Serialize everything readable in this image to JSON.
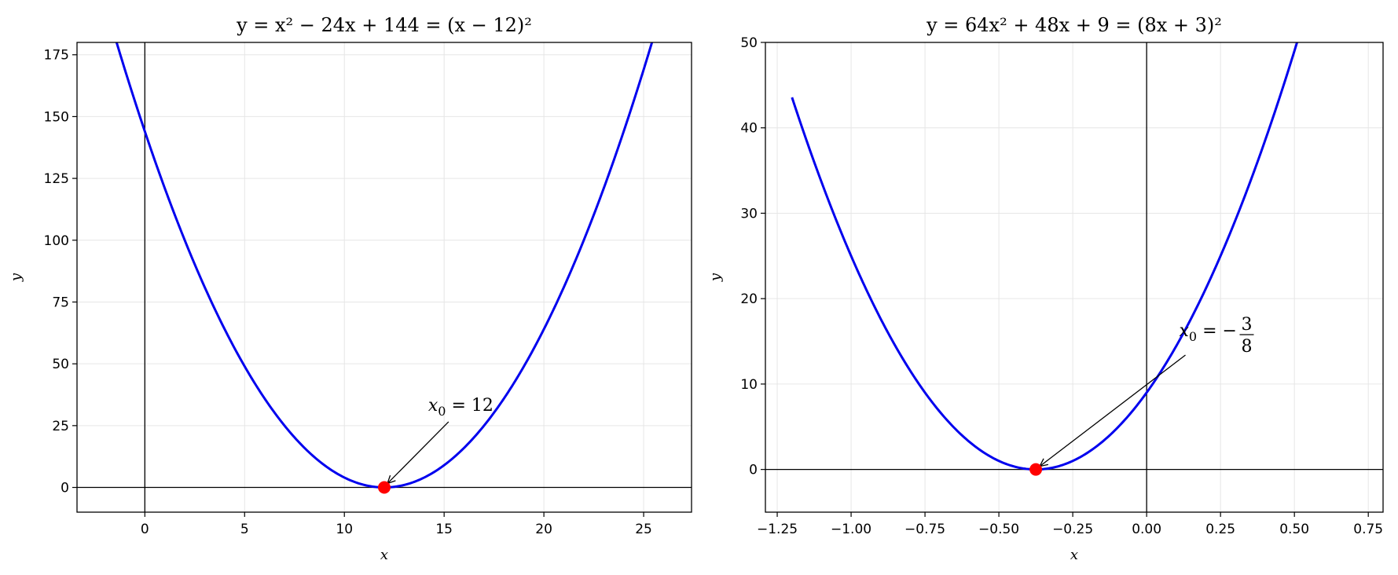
{
  "chart_data": [
    {
      "type": "line",
      "title": "y = x² − 24x + 144 = (x − 12)²",
      "xlabel": "x",
      "ylabel": "y",
      "xlim": [
        -3.4,
        27.4
      ],
      "ylim": [
        -10,
        180
      ],
      "xticks": [
        0,
        5,
        10,
        15,
        20,
        25
      ],
      "xtick_labels": [
        "0",
        "5",
        "10",
        "15",
        "20",
        "25"
      ],
      "yticks": [
        0,
        25,
        50,
        75,
        100,
        125,
        150,
        175
      ],
      "ytick_labels": [
        "0",
        "25",
        "50",
        "75",
        "100",
        "125",
        "150",
        "175"
      ],
      "grid": true,
      "function": {
        "a": 1,
        "b": -24,
        "c": 144,
        "x_range": [
          -1.5,
          25.5
        ]
      },
      "color_line": "#0000ee",
      "color_point": "#ff0000",
      "point": {
        "x": 12,
        "y": 0
      },
      "annotation": {
        "label_main": "x",
        "label_sub": "0",
        "label_rest": " = 12",
        "xytext": [
          14.2,
          31
        ]
      }
    },
    {
      "type": "line",
      "title": "y = 64x² + 48x + 9 = (8x + 3)²",
      "xlabel": "x",
      "ylabel": "y",
      "xlim": [
        -1.29,
        0.8
      ],
      "ylim": [
        -5,
        50
      ],
      "xticks": [
        -1.25,
        -1.0,
        -0.75,
        -0.5,
        -0.25,
        0.0,
        0.25,
        0.5,
        0.75
      ],
      "xtick_labels": [
        "−1.25",
        "−1.00",
        "−0.75",
        "−0.50",
        "−0.25",
        "0.00",
        "0.25",
        "0.50",
        "0.75"
      ],
      "yticks": [
        0,
        10,
        20,
        30,
        40,
        50
      ],
      "ytick_labels": [
        "0",
        "10",
        "20",
        "30",
        "40",
        "50"
      ],
      "grid": true,
      "function": {
        "a": 64,
        "b": 48,
        "c": 9,
        "x_range": [
          -1.2,
          0.55
        ]
      },
      "color_line": "#0000ee",
      "color_point": "#ff0000",
      "point": {
        "x": -0.375,
        "y": 0
      },
      "annotation": {
        "label_main": "x",
        "label_sub": "0",
        "label_rest": " = −",
        "frac_num": "3",
        "frac_den": "8",
        "xytext": [
          0.11,
          14.5
        ]
      }
    }
  ]
}
